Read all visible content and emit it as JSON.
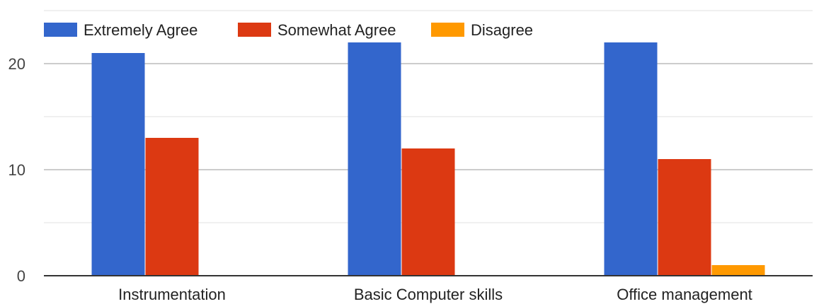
{
  "chart_data": {
    "type": "bar",
    "categories": [
      "Instrumentation",
      "Basic Computer skills",
      "Office management"
    ],
    "series": [
      {
        "name": "Extremely Agree",
        "color": "#3366cc",
        "values": [
          21,
          22,
          22
        ]
      },
      {
        "name": "Somewhat Agree",
        "color": "#dc3912",
        "values": [
          13,
          12,
          11
        ]
      },
      {
        "name": "Disagree",
        "color": "#ff9900",
        "values": [
          0,
          0,
          1
        ]
      }
    ],
    "y_ticks": [
      "0",
      "10",
      "20"
    ],
    "ylim": [
      0,
      25
    ],
    "grid": true,
    "legend_position": "top-left"
  }
}
